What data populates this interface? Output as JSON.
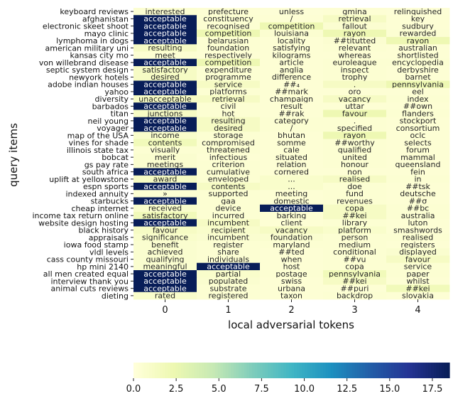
{
  "chart_data": {
    "type": "heatmap",
    "xlabel": "local adversarial tokens",
    "ylabel": "query items",
    "columns": [
      "0",
      "1",
      "2",
      "3",
      "4"
    ],
    "rows": [
      "keyboard reviews",
      "afghanistan",
      "electronic skeet shoot",
      "mayo clinic",
      "lymphoma in dogs",
      "american military uni",
      "kansas city mo",
      "von willebrand disease",
      "septic system design",
      "newyork hotels",
      "adobe indian houses",
      "yahoo",
      "diversity",
      "barbados",
      "titan",
      "neil young",
      "voyager",
      "map of the USA",
      "vines for shade",
      "illinois state tax",
      "bobcat",
      "gs pay rate",
      "south africa",
      "uplift at yellowstone",
      "espn sports",
      "indexed annuity",
      "starbucks",
      "cheap internet",
      "income tax return online",
      "website design hosting",
      "black history",
      "appraisals",
      "iowa food stamp",
      "vldl levels",
      "cass county missouri",
      "hp mini 2140",
      "all men created equal",
      "interview thank you",
      "animal cuts reviews",
      "dieting"
    ],
    "tokens": [
      [
        "interested",
        "prefecture",
        "unless",
        "gmina",
        "relinquished"
      ],
      [
        "acceptable",
        "constituency",
        "/",
        "retrieval",
        "key"
      ],
      [
        "acceptable",
        "recognised",
        "competition",
        "fallout",
        "sudbury"
      ],
      [
        "acceptable",
        "competition",
        "louisiana",
        "rayon",
        "rewarded"
      ],
      [
        "acceptable",
        "belarusian",
        "locality",
        "##titutted",
        "rayon"
      ],
      [
        "resulting",
        "foundation",
        "satisfying",
        "relevant",
        "australian"
      ],
      [
        "meet",
        "respectively",
        "kilograms",
        "whereas",
        "shortlisted"
      ],
      [
        "acceptable",
        "competition",
        "article",
        "euroleague",
        "encyclopedia"
      ],
      [
        "satisfactory",
        "expenditure",
        "anglia",
        "inspect",
        "derbyshire"
      ],
      [
        "desired",
        "programme",
        "difference",
        "trophy",
        "barnet"
      ],
      [
        "acceptable",
        "service",
        "##₄",
        ".",
        "pennsylvania"
      ],
      [
        "acceptable",
        "platforms",
        "##mark",
        "oro",
        "eel"
      ],
      [
        "unacceptable",
        "retrieval",
        "champaign",
        "vacancy",
        "index"
      ],
      [
        "acceptable",
        "civil",
        "result",
        "uttar",
        "##own"
      ],
      [
        "junctions",
        "hot",
        "##rak",
        "favour",
        "flanders"
      ],
      [
        "acceptable",
        "resulting",
        "category",
        ".",
        "stockport"
      ],
      [
        "acceptable",
        "desired",
        "/",
        "specified",
        "consortium"
      ],
      [
        "income",
        "storage",
        "bhutan",
        "rayon",
        "oclc"
      ],
      [
        "contents",
        "compromised",
        "somme",
        "##worthy",
        "selects"
      ],
      [
        "visually",
        "threatened",
        "cale",
        "qualified",
        "forum"
      ],
      [
        "merit",
        "infectious",
        "situated",
        "united",
        "mammal"
      ],
      [
        "meetings",
        "criterion",
        "relation",
        "honour",
        "queensland"
      ],
      [
        "acceptable",
        "cumulative",
        "cornered",
        "non",
        "fein"
      ],
      [
        "award",
        "enveloped",
        "...",
        "realised",
        "in"
      ],
      [
        "acceptable",
        "contents",
        "...",
        "doe",
        "##tsk"
      ],
      [
        "»",
        "supported",
        "meeting",
        "fund",
        "deutsche"
      ],
      [
        "acceptable",
        "gaa",
        "domestic",
        "revenues",
        "##σ"
      ],
      [
        "received",
        "device",
        "acceptable",
        "copa",
        "##bc"
      ],
      [
        "satisfactory",
        "incurred",
        "barking",
        "##kei",
        "australia"
      ],
      [
        "acceptable",
        "incumbent",
        "client",
        "library",
        "luton"
      ],
      [
        "favour",
        "recipient",
        "vacancy",
        "platform",
        "smashwords"
      ],
      [
        "significance",
        "incumbent",
        "foundation",
        "person",
        "realised"
      ],
      [
        "benefit",
        "register",
        "maryland",
        "medium",
        "registers"
      ],
      [
        "achieved",
        "share",
        "##ted",
        "conditional",
        "displayed"
      ],
      [
        "qualifying",
        "individuals",
        "when",
        "##vu",
        "favour"
      ],
      [
        "meaningful",
        "acceptable",
        "host",
        "copa",
        "service"
      ],
      [
        "acceptable",
        "partial",
        "postage",
        "pennsylvania",
        "paper"
      ],
      [
        "acceptable",
        "populated",
        "swiss",
        "##kei",
        "whilst"
      ],
      [
        "acceptable",
        "substrate",
        "urbana",
        "##puri",
        "##kei"
      ],
      [
        "rated",
        "registered",
        "taxon",
        "backdrop",
        "slovakia"
      ]
    ],
    "values": [
      [
        0.4,
        0.3,
        0.2,
        0.3,
        0.2
      ],
      [
        18.5,
        0.4,
        0.3,
        1.2,
        0.3
      ],
      [
        18.5,
        0.4,
        2.2,
        0.5,
        0.3
      ],
      [
        18.5,
        2.2,
        0.5,
        2.2,
        0.4
      ],
      [
        18.5,
        0.4,
        0.3,
        0.5,
        2.2
      ],
      [
        1.2,
        0.4,
        0.3,
        0.4,
        0.3
      ],
      [
        0.4,
        0.3,
        0.3,
        0.3,
        0.3
      ],
      [
        18.5,
        2.2,
        0.3,
        0.4,
        0.4
      ],
      [
        1.2,
        0.4,
        0.3,
        0.4,
        0.3
      ],
      [
        1.2,
        0.4,
        0.3,
        0.4,
        0.3
      ],
      [
        18.5,
        1.2,
        0.3,
        1.2,
        2.2
      ],
      [
        18.5,
        0.4,
        0.3,
        0.3,
        0.3
      ],
      [
        1.2,
        1.2,
        0.3,
        1.2,
        0.4
      ],
      [
        18.5,
        0.4,
        0.3,
        0.3,
        0.3
      ],
      [
        1.2,
        0.4,
        0.3,
        2.2,
        0.4
      ],
      [
        18.5,
        1.2,
        0.4,
        0.4,
        0.3
      ],
      [
        18.5,
        1.2,
        0.4,
        0.4,
        0.3
      ],
      [
        0.8,
        0.4,
        0.3,
        2.2,
        0.3
      ],
      [
        1.8,
        0.4,
        0.3,
        0.4,
        0.3
      ],
      [
        0.4,
        0.4,
        0.3,
        0.4,
        0.3
      ],
      [
        0.6,
        0.3,
        0.3,
        0.4,
        0.3
      ],
      [
        0.6,
        0.4,
        0.3,
        0.4,
        0.3
      ],
      [
        18.5,
        0.4,
        0.3,
        0.3,
        0.3
      ],
      [
        1.2,
        0.4,
        0.8,
        1.2,
        0.4
      ],
      [
        18.5,
        1.2,
        0.8,
        0.4,
        0.3
      ],
      [
        0.4,
        0.4,
        0.3,
        0.4,
        0.3
      ],
      [
        18.5,
        0.4,
        0.3,
        0.4,
        0.3
      ],
      [
        0.8,
        0.4,
        18.5,
        1.2,
        0.4
      ],
      [
        1.8,
        0.4,
        0.3,
        1.2,
        0.4
      ],
      [
        18.5,
        1.2,
        0.3,
        0.4,
        0.3
      ],
      [
        1.2,
        0.8,
        1.2,
        0.8,
        0.3
      ],
      [
        0.8,
        0.6,
        0.6,
        0.4,
        0.4
      ],
      [
        0.6,
        0.4,
        0.4,
        0.4,
        0.3
      ],
      [
        0.6,
        0.4,
        0.3,
        0.4,
        0.6
      ],
      [
        0.6,
        0.4,
        0.3,
        0.4,
        1.2
      ],
      [
        0.6,
        18.5,
        0.3,
        0.4,
        0.4
      ],
      [
        18.5,
        0.8,
        0.4,
        1.8,
        0.4
      ],
      [
        18.5,
        0.6,
        0.3,
        1.2,
        0.3
      ],
      [
        18.5,
        0.4,
        0.3,
        0.3,
        1.8
      ],
      [
        0.8,
        0.4,
        0.3,
        0.4,
        0.3
      ]
    ],
    "colorbar": {
      "colormap": "YlGnBu",
      "range": [
        0,
        18.5
      ],
      "ticks": [
        "0.0",
        "2.5",
        "5.0",
        "7.5",
        "10.0",
        "12.5",
        "15.0",
        "17.5"
      ]
    }
  }
}
